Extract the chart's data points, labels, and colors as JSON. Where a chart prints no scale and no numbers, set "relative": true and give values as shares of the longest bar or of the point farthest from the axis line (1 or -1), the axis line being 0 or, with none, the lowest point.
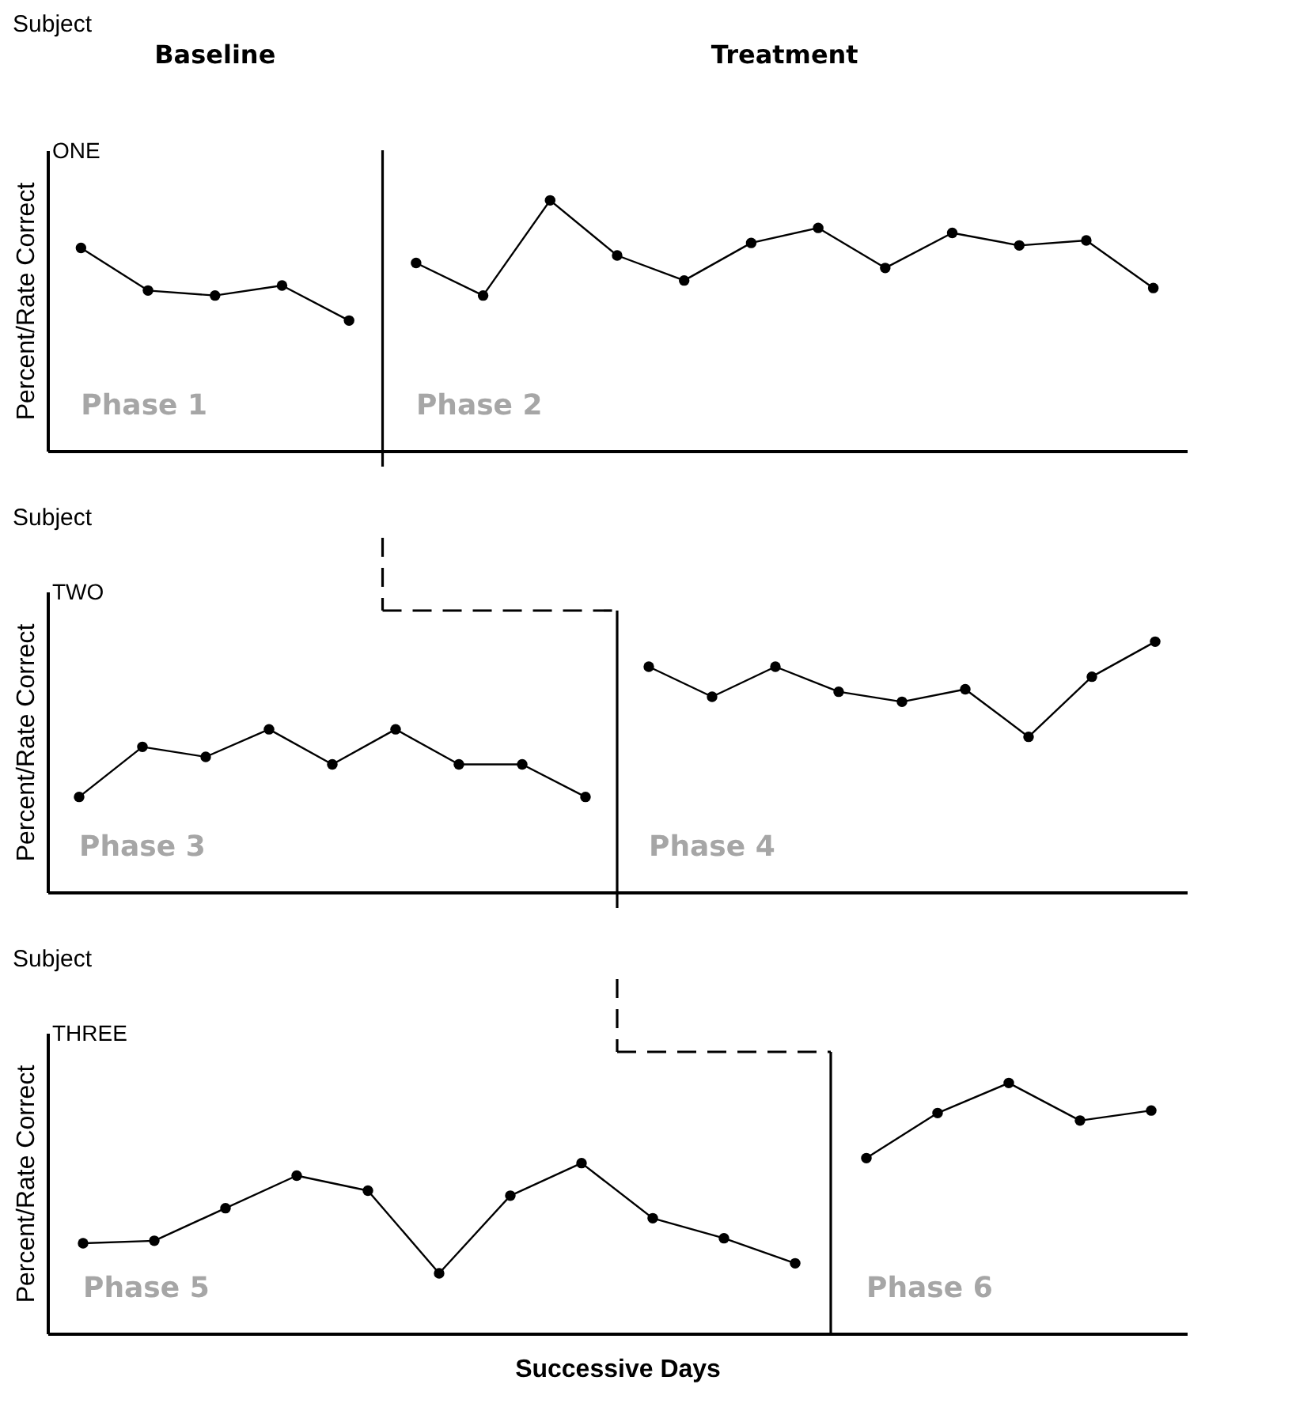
{
  "chart_data": [
    {
      "type": "line",
      "title": "Subject",
      "subtitle": "ONE",
      "ylabel": "Percent/Rate Correct",
      "relative": true,
      "marker": "circle",
      "tick_labels": false,
      "annotations": [
        "Phase 1",
        "Phase 2",
        "Baseline",
        "Treatment"
      ],
      "categories": [
        null,
        null,
        null,
        null,
        null,
        null,
        null,
        null,
        null,
        null,
        null,
        null,
        null,
        null,
        null,
        null,
        null
      ],
      "series": [
        {
          "color": "#000000",
          "values": [
            0.81,
            0.64,
            0.62,
            0.66,
            0.52,
            null,
            null,
            null,
            null,
            null,
            null,
            null,
            null,
            null,
            null,
            null,
            null
          ]
        },
        {
          "color": "#000000",
          "values": [
            null,
            null,
            null,
            null,
            null,
            0.75,
            0.62,
            1,
            0.78,
            0.68,
            0.83,
            0.89,
            0.73,
            0.87,
            0.82,
            0.84,
            0.65
          ]
        }
      ]
    },
    {
      "type": "line",
      "title": "Subject",
      "subtitle": "TWO",
      "annotations": [
        "Phase 3",
        "Phase 4"
      ],
      "ylabel": "Percent/Rate Correct",
      "relative": true,
      "marker": "circle",
      "tick_labels": false,
      "categories": [
        null,
        null,
        null,
        null,
        null,
        null,
        null,
        null,
        null,
        null,
        null,
        null,
        null,
        null,
        null,
        null,
        null,
        null
      ],
      "series": [
        {
          "color": "#000000",
          "values": [
            0.38,
            0.58,
            0.54,
            0.65,
            0.51,
            0.65,
            0.51,
            0.51,
            0.38,
            null,
            null,
            null,
            null,
            null,
            null,
            null,
            null,
            null
          ]
        },
        {
          "color": "#000000",
          "values": [
            null,
            null,
            null,
            null,
            null,
            null,
            null,
            null,
            null,
            0.9,
            0.78,
            0.9,
            0.8,
            0.76,
            0.81,
            0.62,
            0.86,
            1
          ]
        }
      ]
    },
    {
      "type": "line",
      "title": "Subject",
      "subtitle": "THREE",
      "annotations": [
        "Phase 5",
        "Phase 6"
      ],
      "ylabel": "Percent/Rate Correct",
      "xlabel": "Successive Days",
      "relative": true,
      "marker": "circle",
      "tick_labels": false,
      "categories": [
        null,
        null,
        null,
        null,
        null,
        null,
        null,
        null,
        null,
        null,
        null,
        null,
        null,
        null,
        null,
        null
      ],
      "series": [
        {
          "color": "#000000",
          "values": [
            0.36,
            0.37,
            0.5,
            0.63,
            0.57,
            0.24,
            0.55,
            0.68,
            0.46,
            0.38,
            0.28,
            null,
            null,
            null,
            null,
            null
          ]
        },
        {
          "color": "#000000",
          "values": [
            null,
            null,
            null,
            null,
            null,
            null,
            null,
            null,
            null,
            null,
            null,
            0.7,
            0.88,
            1,
            0.85,
            0.89
          ]
        }
      ]
    }
  ]
}
